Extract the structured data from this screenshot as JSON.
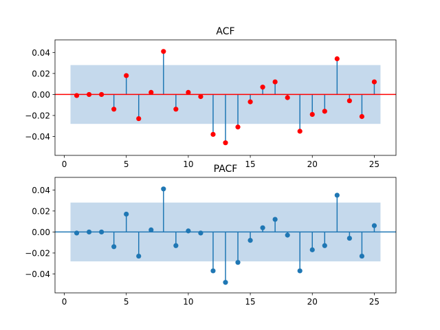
{
  "chart_data": [
    {
      "type": "stem",
      "title": "ACF",
      "xlabel": "",
      "ylabel": "",
      "xlim": [
        -0.75,
        26.75
      ],
      "ylim": [
        -0.058,
        0.052
      ],
      "xticks": [
        0,
        5,
        10,
        15,
        20,
        25
      ],
      "xtick_labels": [
        "0",
        "5",
        "10",
        "15",
        "20",
        "25"
      ],
      "yticks": [
        -0.04,
        -0.02,
        0.0,
        0.02,
        0.04
      ],
      "ytick_labels": [
        "−0.04",
        "−0.02",
        "0.00",
        "0.02",
        "0.04"
      ],
      "confidence_band": [
        -0.028,
        0.028
      ],
      "confidence_band_x": [
        0.5,
        25.5
      ],
      "baseline": 0,
      "colors": {
        "marker": "#ff0000",
        "stem": "#1f77b4",
        "baseline": "#ff0000",
        "band": "#c5d9ec"
      },
      "x": [
        1,
        2,
        3,
        4,
        5,
        6,
        7,
        8,
        9,
        10,
        11,
        12,
        13,
        14,
        15,
        16,
        17,
        18,
        19,
        20,
        21,
        22,
        23,
        24,
        25
      ],
      "values": [
        -0.001,
        0.0,
        0.0,
        -0.014,
        0.018,
        -0.023,
        0.002,
        0.041,
        -0.014,
        0.002,
        -0.002,
        -0.038,
        -0.046,
        -0.031,
        -0.007,
        0.007,
        0.012,
        -0.003,
        -0.035,
        -0.019,
        -0.016,
        0.034,
        -0.006,
        -0.021,
        0.012
      ]
    },
    {
      "type": "stem",
      "title": "PACF",
      "xlabel": "",
      "ylabel": "",
      "xlim": [
        -0.75,
        26.75
      ],
      "ylim": [
        -0.058,
        0.052
      ],
      "xticks": [
        0,
        5,
        10,
        15,
        20,
        25
      ],
      "xtick_labels": [
        "0",
        "5",
        "10",
        "15",
        "20",
        "25"
      ],
      "yticks": [
        -0.04,
        -0.02,
        0.0,
        0.02,
        0.04
      ],
      "ytick_labels": [
        "−0.04",
        "−0.02",
        "0.00",
        "0.02",
        "0.04"
      ],
      "confidence_band": [
        -0.028,
        0.028
      ],
      "confidence_band_x": [
        0.5,
        25.5
      ],
      "baseline": 0,
      "colors": {
        "marker": "#1f77b4",
        "stem": "#1f77b4",
        "baseline": "#1f77b4",
        "band": "#c5d9ec"
      },
      "x": [
        1,
        2,
        3,
        4,
        5,
        6,
        7,
        8,
        9,
        10,
        11,
        12,
        13,
        14,
        15,
        16,
        17,
        18,
        19,
        20,
        21,
        22,
        23,
        24,
        25
      ],
      "values": [
        -0.001,
        0.0,
        0.0,
        -0.014,
        0.017,
        -0.023,
        0.002,
        0.041,
        -0.013,
        0.001,
        -0.001,
        -0.037,
        -0.048,
        -0.029,
        -0.008,
        0.004,
        0.012,
        -0.003,
        -0.037,
        -0.017,
        -0.013,
        0.035,
        -0.006,
        -0.023,
        0.006
      ]
    }
  ]
}
